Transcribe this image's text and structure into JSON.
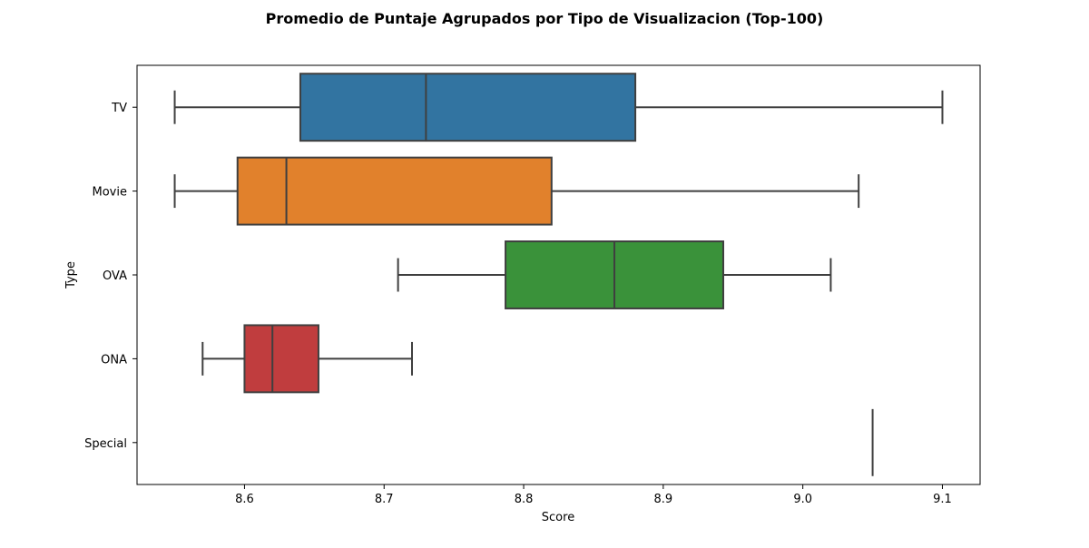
{
  "chart_data": {
    "type": "boxplot",
    "orientation": "horizontal",
    "title": "Promedio de Puntaje Agrupados por Tipo de Visualizacion (Top-100)",
    "xlabel": "Score",
    "ylabel": "Type",
    "xlim": [
      8.523,
      9.127
    ],
    "xticks": [
      8.6,
      8.7,
      8.8,
      8.9,
      9.0,
      9.1
    ],
    "xtick_labels": [
      "8.6",
      "8.7",
      "8.8",
      "8.9",
      "9.0",
      "9.1"
    ],
    "grid": false,
    "categories": [
      "TV",
      "Movie",
      "OVA",
      "ONA",
      "Special"
    ],
    "series": [
      {
        "category": "TV",
        "min": 8.55,
        "q1": 8.64,
        "median": 8.73,
        "q3": 8.88,
        "max": 9.1,
        "color": "#3274a1"
      },
      {
        "category": "Movie",
        "min": 8.55,
        "q1": 8.595,
        "median": 8.63,
        "q3": 8.82,
        "max": 9.04,
        "color": "#e1812c"
      },
      {
        "category": "OVA",
        "min": 8.71,
        "q1": 8.787,
        "median": 8.865,
        "q3": 8.943,
        "max": 9.02,
        "color": "#3a923a"
      },
      {
        "category": "ONA",
        "min": 8.57,
        "q1": 8.6,
        "median": 8.62,
        "q3": 8.653,
        "max": 8.72,
        "color": "#c03d3e"
      },
      {
        "category": "Special",
        "min": 9.05,
        "q1": 9.05,
        "median": 9.05,
        "q3": 9.05,
        "max": 9.05,
        "color": "#9372b2"
      }
    ],
    "line_color": "#3f3f3f"
  }
}
